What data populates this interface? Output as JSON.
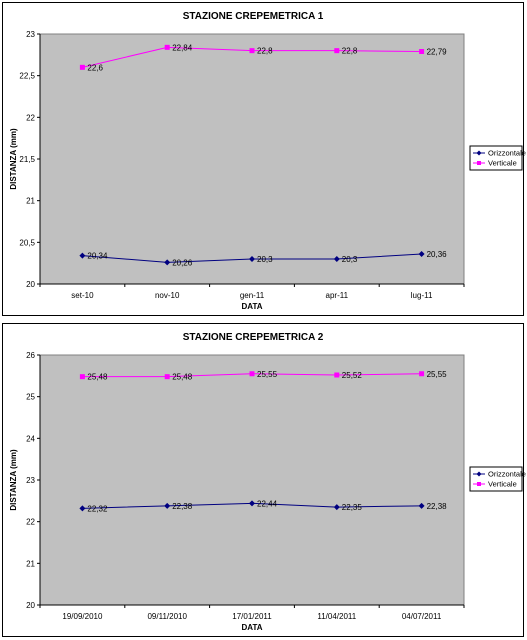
{
  "chart_data": [
    {
      "type": "line",
      "title": "STAZIONE CREPEMETRICA 1",
      "xlabel": "DATA",
      "ylabel": "DISTANZA (mm)",
      "categories": [
        "set-10",
        "nov-10",
        "gen-11",
        "apr-11",
        "lug-11"
      ],
      "ylim": [
        20,
        23
      ],
      "yticks": [
        "20",
        "20,5",
        "21",
        "21,5",
        "22",
        "22,5",
        "23"
      ],
      "ytick_values": [
        20,
        20.5,
        21,
        21.5,
        22,
        22.5,
        23
      ],
      "grid": false,
      "legend": "right",
      "series": [
        {
          "name": "Orizzontale",
          "color": "#000080",
          "marker": "diamond",
          "values": [
            20.34,
            20.26,
            20.3,
            20.3,
            20.36
          ],
          "labels": [
            "20,34",
            "20,26",
            "20,3",
            "20,3",
            "20,36"
          ]
        },
        {
          "name": "Verticale",
          "color": "#ff00ff",
          "marker": "square",
          "values": [
            22.6,
            22.84,
            22.8,
            22.8,
            22.79
          ],
          "labels": [
            "22,6",
            "22,84",
            "22,8",
            "22,8",
            "22,79"
          ]
        }
      ]
    },
    {
      "type": "line",
      "title": "STAZIONE CREPEMETRICA 2",
      "xlabel": "DATA",
      "ylabel": "DISTANZA (mm)",
      "categories": [
        "19/09/2010",
        "09/11/2010",
        "17/01/2011",
        "11/04/2011",
        "04/07/2011"
      ],
      "ylim": [
        20,
        26
      ],
      "yticks": [
        "20",
        "21",
        "22",
        "23",
        "24",
        "25",
        "26"
      ],
      "ytick_values": [
        20,
        21,
        22,
        23,
        24,
        25,
        26
      ],
      "grid": false,
      "legend": "right",
      "series": [
        {
          "name": "Orizzontale",
          "color": "#000080",
          "marker": "diamond",
          "values": [
            22.32,
            22.38,
            22.44,
            22.35,
            22.38
          ],
          "labels": [
            "22,32",
            "22,38",
            "22,44",
            "22,35",
            "22,38"
          ]
        },
        {
          "name": "Verticale",
          "color": "#ff00ff",
          "marker": "square",
          "values": [
            25.48,
            25.48,
            25.55,
            25.52,
            25.55
          ],
          "labels": [
            "25,48",
            "25,48",
            "25,55",
            "25,52",
            "25,55"
          ]
        }
      ]
    }
  ]
}
